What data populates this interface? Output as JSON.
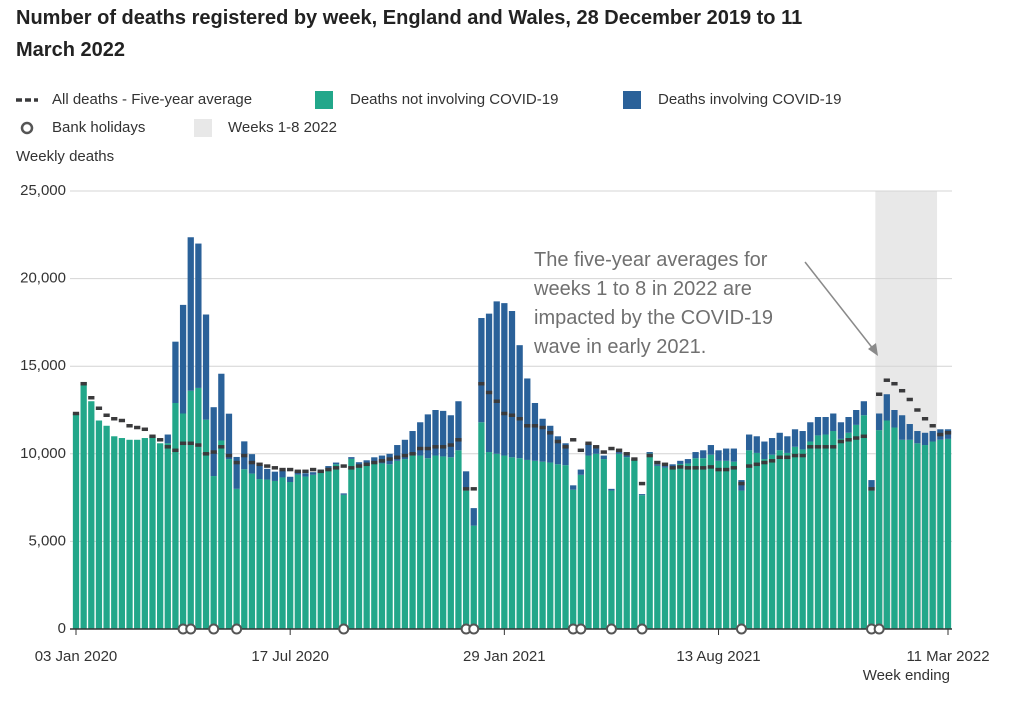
{
  "chart_data": {
    "type": "stacked-bar",
    "title": "Number of deaths registered by week, England and Wales, 28 December 2019 to 11 March 2022",
    "ylabel": "Weekly deaths",
    "xlabel": "Week ending",
    "annotation": "The five-year averages for weeks 1 to 8 in 2022 are impacted by the COVID-19 wave in early 2021.",
    "ylim": [
      0,
      25000
    ],
    "yticks": [
      0,
      {
        "value": 5000,
        "label": "5,000"
      },
      {
        "value": 10000,
        "label": "10,000"
      },
      {
        "value": 15000,
        "label": "15,000"
      },
      {
        "value": 20000,
        "label": "20,000"
      },
      {
        "value": 25000,
        "label": "25,000"
      }
    ],
    "grid": true,
    "categories": [
      "03 Jan 2020",
      null,
      null,
      null,
      null,
      null,
      null,
      null,
      null,
      null,
      null,
      null,
      null,
      null,
      null,
      null,
      null,
      null,
      null,
      null,
      null,
      null,
      null,
      null,
      null,
      null,
      null,
      null,
      "17 Jul 2020",
      null,
      null,
      null,
      null,
      null,
      null,
      null,
      null,
      null,
      null,
      null,
      null,
      null,
      null,
      null,
      null,
      null,
      null,
      null,
      null,
      null,
      null,
      null,
      null,
      null,
      null,
      null,
      "29 Jan 2021",
      null,
      null,
      null,
      null,
      null,
      null,
      null,
      null,
      null,
      null,
      null,
      null,
      null,
      null,
      null,
      null,
      null,
      null,
      null,
      null,
      null,
      null,
      null,
      null,
      null,
      null,
      null,
      "13 Aug 2021",
      null,
      null,
      null,
      null,
      null,
      null,
      null,
      null,
      null,
      null,
      null,
      null,
      null,
      null,
      null,
      null,
      null,
      null,
      null,
      null,
      null,
      null,
      null,
      null,
      null,
      null,
      null,
      null,
      null,
      "11 Mar 2022"
    ],
    "series": [
      {
        "name": "Deaths not involving COVID-19",
        "color": "#22a78a",
        "values": [
          12300,
          14100,
          13000,
          11900,
          11600,
          11000,
          10900,
          10800,
          10800,
          10900,
          11000,
          10600,
          10600,
          12900,
          12300,
          13600,
          13760,
          11950,
          8730,
          10760,
          9700,
          8000,
          9120,
          8870,
          8560,
          8530,
          8450,
          8650,
          8390,
          8810,
          8700,
          8800,
          8960,
          9160,
          9400,
          7660,
          9710,
          9380,
          9430,
          9500,
          9450,
          9400,
          9600,
          9700,
          9900,
          9900,
          9750,
          9900,
          9850,
          9800,
          10200,
          7900,
          5900,
          11800,
          10100,
          10000,
          9900,
          9800,
          9750,
          9650,
          9600,
          9550,
          9500,
          9400,
          9350,
          7950,
          8800,
          9900,
          10000,
          9700,
          7900,
          10000,
          9810,
          9620,
          7640,
          10020,
          9310,
          9210,
          9250,
          9420,
          9450,
          9750,
          9750,
          9950,
          9600,
          9600,
          9550,
          7900,
          10200,
          10050,
          9700,
          9950,
          10200,
          10050,
          10400,
          10250,
          10700,
          11050,
          11100,
          11300,
          10850,
          11200,
          11650,
          12200,
          7900,
          11350,
          11900,
          11500,
          10800,
          10800,
          10600,
          10500,
          10700,
          10800,
          10850
        ]
      },
      {
        "name": "Deaths involving COVID-19",
        "color": "#2a6199",
        "values": [
          0,
          0,
          0,
          0,
          0,
          0,
          0,
          0,
          0,
          0,
          0,
          0,
          500,
          3500,
          6200,
          8760,
          8240,
          6000,
          3930,
          3810,
          2590,
          1820,
          1590,
          1110,
          780,
          610,
          530,
          370,
          300,
          220,
          190,
          150,
          140,
          140,
          100,
          80,
          100,
          140,
          200,
          300,
          450,
          600,
          900,
          1100,
          1400,
          1900,
          2500,
          2600,
          2600,
          2400,
          2800,
          1100,
          1000,
          5950,
          7900,
          8700,
          8700,
          8350,
          6450,
          4650,
          3300,
          2450,
          2100,
          1600,
          1250,
          250,
          300,
          700,
          300,
          200,
          100,
          100,
          90,
          80,
          60,
          80,
          90,
          90,
          150,
          180,
          250,
          350,
          450,
          550,
          600,
          700,
          750,
          600,
          900,
          950,
          1000,
          950,
          1000,
          950,
          1000,
          1050,
          1100,
          1050,
          1000,
          1000,
          950,
          900,
          850,
          800,
          600,
          950,
          1500,
          1000,
          1400,
          900,
          700,
          700,
          600,
          600,
          550
        ]
      }
    ],
    "average": {
      "name": "All deaths - Five-year average",
      "color": "#3a3a3c",
      "values": [
        12300,
        14000,
        13200,
        12600,
        12200,
        12000,
        11900,
        11600,
        11500,
        11400,
        11000,
        10800,
        10400,
        10200,
        10600,
        10600,
        10500,
        10000,
        10100,
        10400,
        9900,
        9500,
        9900,
        9500,
        9400,
        9300,
        9200,
        9100,
        9100,
        9000,
        9000,
        9100,
        9000,
        9100,
        9200,
        9300,
        9200,
        9300,
        9400,
        9500,
        9600,
        9700,
        9800,
        9900,
        10000,
        10300,
        10300,
        10400,
        10400,
        10500,
        10800,
        8000,
        8000,
        14000,
        13500,
        13000,
        12300,
        12200,
        12000,
        11600,
        11600,
        11500,
        11200,
        10700,
        10400,
        10800,
        10200,
        10600,
        10400,
        10100,
        10300,
        10200,
        10000,
        9700,
        8300,
        9900,
        9500,
        9400,
        9200,
        9250,
        9200,
        9200,
        9200,
        9250,
        9100,
        9100,
        9200,
        8300,
        9300,
        9400,
        9500,
        9600,
        9800,
        9800,
        9900,
        9900,
        10400,
        10400,
        10400,
        10400,
        10700,
        10800,
        10900,
        11000,
        8000,
        13400,
        14200,
        14000,
        13600,
        13100,
        12500,
        12000,
        11600,
        11100,
        11200
      ]
    },
    "bank_holidays": {
      "name": "Bank holidays",
      "color": "#555555",
      "values": [
        null,
        null,
        null,
        null,
        null,
        null,
        null,
        null,
        null,
        null,
        null,
        null,
        null,
        null,
        0,
        0,
        null,
        null,
        0,
        null,
        null,
        0,
        null,
        null,
        null,
        null,
        null,
        null,
        null,
        null,
        null,
        null,
        null,
        null,
        null,
        0,
        null,
        null,
        null,
        null,
        null,
        null,
        null,
        null,
        null,
        null,
        null,
        null,
        null,
        null,
        null,
        0,
        0,
        null,
        null,
        null,
        null,
        null,
        null,
        null,
        null,
        null,
        null,
        null,
        null,
        0,
        0,
        null,
        null,
        null,
        0,
        null,
        null,
        null,
        0,
        null,
        null,
        null,
        null,
        null,
        null,
        null,
        null,
        null,
        null,
        null,
        null,
        0,
        null,
        null,
        null,
        null,
        null,
        null,
        null,
        null,
        null,
        null,
        null,
        null,
        null,
        null,
        null,
        null,
        0,
        0,
        null,
        null,
        null,
        null,
        null,
        null,
        null,
        null,
        null
      ]
    },
    "highlight": {
      "name": "Weeks 1-8 2022",
      "color": "#e8e8e8",
      "values": [
        null,
        null,
        null,
        null,
        null,
        null,
        null,
        null,
        null,
        null,
        null,
        null,
        null,
        null,
        null,
        null,
        null,
        null,
        null,
        null,
        null,
        null,
        null,
        null,
        null,
        null,
        null,
        null,
        null,
        null,
        null,
        null,
        null,
        null,
        null,
        null,
        null,
        null,
        null,
        null,
        null,
        null,
        null,
        null,
        null,
        null,
        null,
        null,
        null,
        null,
        null,
        null,
        null,
        null,
        null,
        null,
        null,
        null,
        null,
        null,
        null,
        null,
        null,
        null,
        null,
        null,
        null,
        null,
        null,
        null,
        null,
        null,
        null,
        null,
        null,
        null,
        null,
        null,
        null,
        null,
        null,
        null,
        null,
        null,
        null,
        null,
        null,
        null,
        null,
        null,
        null,
        null,
        null,
        null,
        null,
        null,
        null,
        null,
        null,
        null,
        null,
        null,
        null,
        null,
        null,
        25000,
        25000,
        25000,
        25000,
        25000,
        25000,
        25000,
        25000,
        null,
        null
      ]
    }
  }
}
